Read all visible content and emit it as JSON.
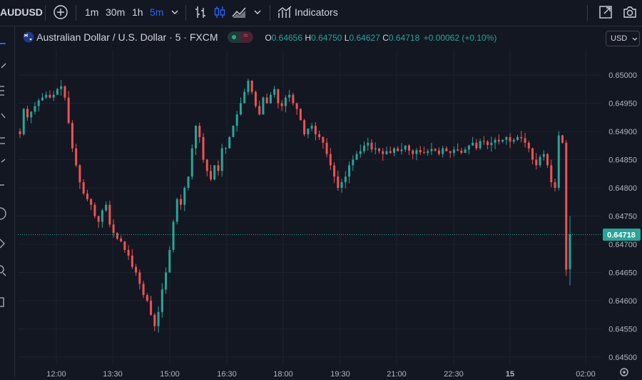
{
  "toolbar": {
    "symbol": "AUDUSD",
    "intervals": [
      "1m",
      "30m",
      "1h",
      "5m"
    ],
    "active_interval": "5m",
    "indicators_label": "Indicators"
  },
  "legend": {
    "title": "Australian Dollar / U.S. Dollar · 5 · FXCM",
    "o_label": "O",
    "o_value": "0.64656",
    "h_label": "H",
    "h_value": "0.64750",
    "l_label": "L",
    "l_value": "0.64627",
    "c_label": "C",
    "c_value": "0.64718",
    "change": "+0.00062 (+0.10%)"
  },
  "currency": "USD",
  "colors": {
    "background": "#131722",
    "up": "#26a69a",
    "down": "#ef5350",
    "accent": "#2962ff",
    "text": "#d1d4dc",
    "axis_text": "#b2b5be",
    "grid": "#1e222d"
  },
  "icons": [
    "add-icon",
    "chevron-down-icon",
    "bar-style-icon",
    "candle-style-icon",
    "area-style-icon",
    "indicators-icon",
    "fullscreen-icon",
    "camera-icon",
    "flag-icon",
    "settings-icon"
  ],
  "chart_data": {
    "type": "candlestick",
    "symbol": "AUDUSD",
    "interval_minutes": 5,
    "ylim": [
      0.645,
      0.65025
    ],
    "y_ticks": [
      "0.65000",
      "0.64950",
      "0.64900",
      "0.64850",
      "0.64800",
      "0.64750",
      "0.64700",
      "0.64650",
      "0.64600",
      "0.64550",
      "0.64500"
    ],
    "x_ticks": [
      "12:00",
      "13:30",
      "15:00",
      "16:30",
      "18:00",
      "19:30",
      "21:00",
      "22:30",
      "15",
      "02:00"
    ],
    "last_price": "0.64718",
    "last_price_value": 0.64718,
    "close": [
      0.64895,
      0.6494,
      0.64925,
      0.64935,
      0.64945,
      0.64955,
      0.6496,
      0.64965,
      0.6496,
      0.64965,
      0.64975,
      0.6498,
      0.6496,
      0.64915,
      0.6487,
      0.6484,
      0.6481,
      0.6479,
      0.6478,
      0.6477,
      0.6475,
      0.6474,
      0.6476,
      0.6477,
      0.64735,
      0.6472,
      0.6471,
      0.64705,
      0.6469,
      0.6468,
      0.6466,
      0.6465,
      0.6463,
      0.6461,
      0.646,
      0.64575,
      0.64555,
      0.6458,
      0.6462,
      0.6465,
      0.6469,
      0.6474,
      0.6478,
      0.6477,
      0.648,
      0.6482,
      0.6487,
      0.6491,
      0.6489,
      0.6485,
      0.6483,
      0.64815,
      0.6484,
      0.6483,
      0.6487,
      0.6487,
      0.6489,
      0.6491,
      0.6493,
      0.6495,
      0.6497,
      0.6499,
      0.6497,
      0.64945,
      0.6493,
      0.6496,
      0.6495,
      0.64965,
      0.64975,
      0.6495,
      0.64945,
      0.6496,
      0.64965,
      0.6495,
      0.6494,
      0.6492,
      0.64895,
      0.64905,
      0.6491,
      0.64895,
      0.6489,
      0.6488,
      0.6486,
      0.6484,
      0.6482,
      0.648,
      0.6481,
      0.6482,
      0.6484,
      0.6485,
      0.6486,
      0.64865,
      0.64875,
      0.6488,
      0.64868,
      0.6487,
      0.64865,
      0.6486,
      0.64865,
      0.64862,
      0.6487,
      0.64865,
      0.64868,
      0.64875,
      0.64866,
      0.6486,
      0.64867,
      0.64863,
      0.64862,
      0.64865,
      0.64869,
      0.64866,
      0.6486,
      0.6487,
      0.64865,
      0.64862,
      0.64868,
      0.64866,
      0.64862,
      0.64868,
      0.64875,
      0.6488,
      0.6487,
      0.64883,
      0.64882,
      0.64876,
      0.6488,
      0.64885,
      0.64882,
      0.64885,
      0.6489,
      0.64882,
      0.64885,
      0.6489,
      0.64888,
      0.6488,
      0.6487,
      0.6485,
      0.6484,
      0.64855,
      0.6486,
      0.6484,
      0.6481,
      0.648,
      0.64893,
      0.6488,
      0.64655,
      0.64718
    ],
    "ohlc_last": {
      "open": 0.64656,
      "high": 0.6475,
      "low": 0.64627,
      "close": 0.64718
    }
  }
}
